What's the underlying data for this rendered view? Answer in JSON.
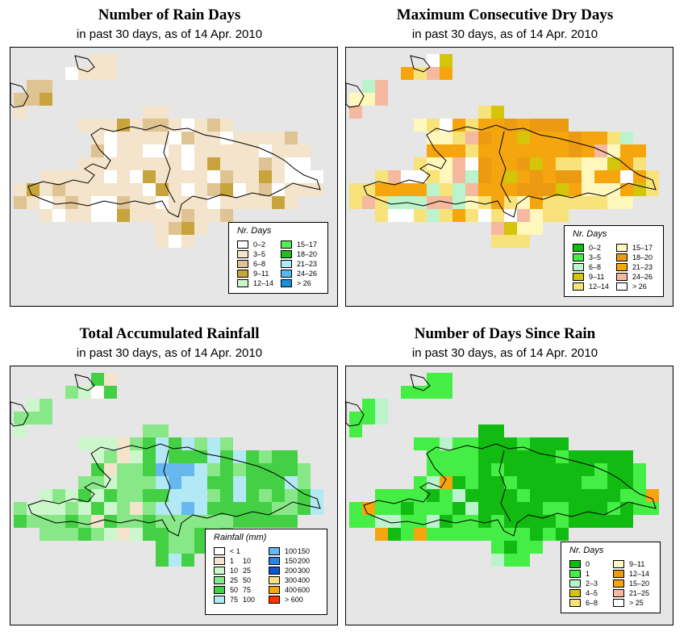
{
  "panels": [
    {
      "title": "Number of Rain Days",
      "subtitle": "in past 30 days, as of  14 Apr. 2010"
    },
    {
      "title": "Maximum Consecutive Dry Days",
      "subtitle": "in past 30 days, as of  14 Apr. 2010"
    },
    {
      "title": "Total Accumulated Rainfall",
      "subtitle": "in past 30 days, as of  14 Apr. 2010"
    },
    {
      "title": "Number of Days Since Rain",
      "subtitle": "in past 30 days, as of  14 Apr. 2010"
    }
  ],
  "legends": [
    {
      "title": "Nr. Days",
      "cols": [
        [
          {
            "label": "0–2",
            "color": "#ffffff"
          },
          {
            "label": "3–5",
            "color": "#f3e4cb"
          },
          {
            "label": "6–8",
            "color": "#dfc393"
          },
          {
            "label": "9–11",
            "color": "#c8a53c"
          },
          {
            "label": "12–14",
            "color": "#ccf6cc"
          }
        ],
        [
          {
            "label": "15–17",
            "color": "#55ee55"
          },
          {
            "label": "18–20",
            "color": "#22bb22"
          },
          {
            "label": "21–23",
            "color": "#b3e8f5"
          },
          {
            "label": "24–26",
            "color": "#55b8ee"
          },
          {
            "label": "> 26",
            "color": "#1a8fd6"
          }
        ]
      ]
    },
    {
      "title": "Nr. Days",
      "cols": [
        [
          {
            "label": "0–2",
            "color": "#11bb11"
          },
          {
            "label": "3–5",
            "color": "#44ee44"
          },
          {
            "label": "6–8",
            "color": "#bbf4cc"
          },
          {
            "label": "9–11",
            "color": "#d4c40a"
          },
          {
            "label": "12–14",
            "color": "#f8e27a"
          }
        ],
        [
          {
            "label": "15–17",
            "color": "#fff7bb"
          },
          {
            "label": "18–20",
            "color": "#ec9a12"
          },
          {
            "label": "21–23",
            "color": "#f5a60e"
          },
          {
            "label": "24–26",
            "color": "#f5b9a0"
          },
          {
            "label": "> 26",
            "color": "#ffffff"
          }
        ]
      ]
    },
    {
      "title": "Rainfall (mm)",
      "cols": [
        [
          {
            "label": "< 1",
            "label2": "",
            "color": "#ffffff"
          },
          {
            "label": "1",
            "label2": "10",
            "color": "#f3e4cb"
          },
          {
            "label": "10",
            "label2": "25",
            "color": "#ccf6cc"
          },
          {
            "label": "25",
            "label2": "50",
            "color": "#88e888"
          },
          {
            "label": "50",
            "label2": "75",
            "color": "#44d044"
          },
          {
            "label": "75",
            "label2": "100",
            "color": "#b3e8f5"
          }
        ],
        [
          {
            "label": "100",
            "label2": "150",
            "color": "#66b8ee"
          },
          {
            "label": "150",
            "label2": "200",
            "color": "#2a86e6"
          },
          {
            "label": "200",
            "label2": "300",
            "color": "#1155cc"
          },
          {
            "label": "300",
            "label2": "400",
            "color": "#f8e27a"
          },
          {
            "label": "400",
            "label2": "600",
            "color": "#f5a60e"
          },
          {
            "label": "> 600",
            "label2": "",
            "color": "#ff3300"
          }
        ]
      ]
    },
    {
      "title": "Nr. Days",
      "cols": [
        [
          {
            "label": "0",
            "color": "#11bb11"
          },
          {
            "label": "1",
            "color": "#44ee44"
          },
          {
            "label": "2–3",
            "color": "#bbf4cc"
          },
          {
            "label": "4–5",
            "color": "#d4c40a"
          },
          {
            "label": "6–8",
            "color": "#f8e27a"
          }
        ],
        [
          {
            "label": "9–11",
            "color": "#fff7bb"
          },
          {
            "label": "12–14",
            "color": "#ec9a12"
          },
          {
            "label": "15–20",
            "color": "#f5a60e"
          },
          {
            "label": "21–25",
            "color": "#f5b9a0"
          },
          {
            "label": "> 25",
            "color": "#ffffff"
          }
        ]
      ]
    }
  ]
}
